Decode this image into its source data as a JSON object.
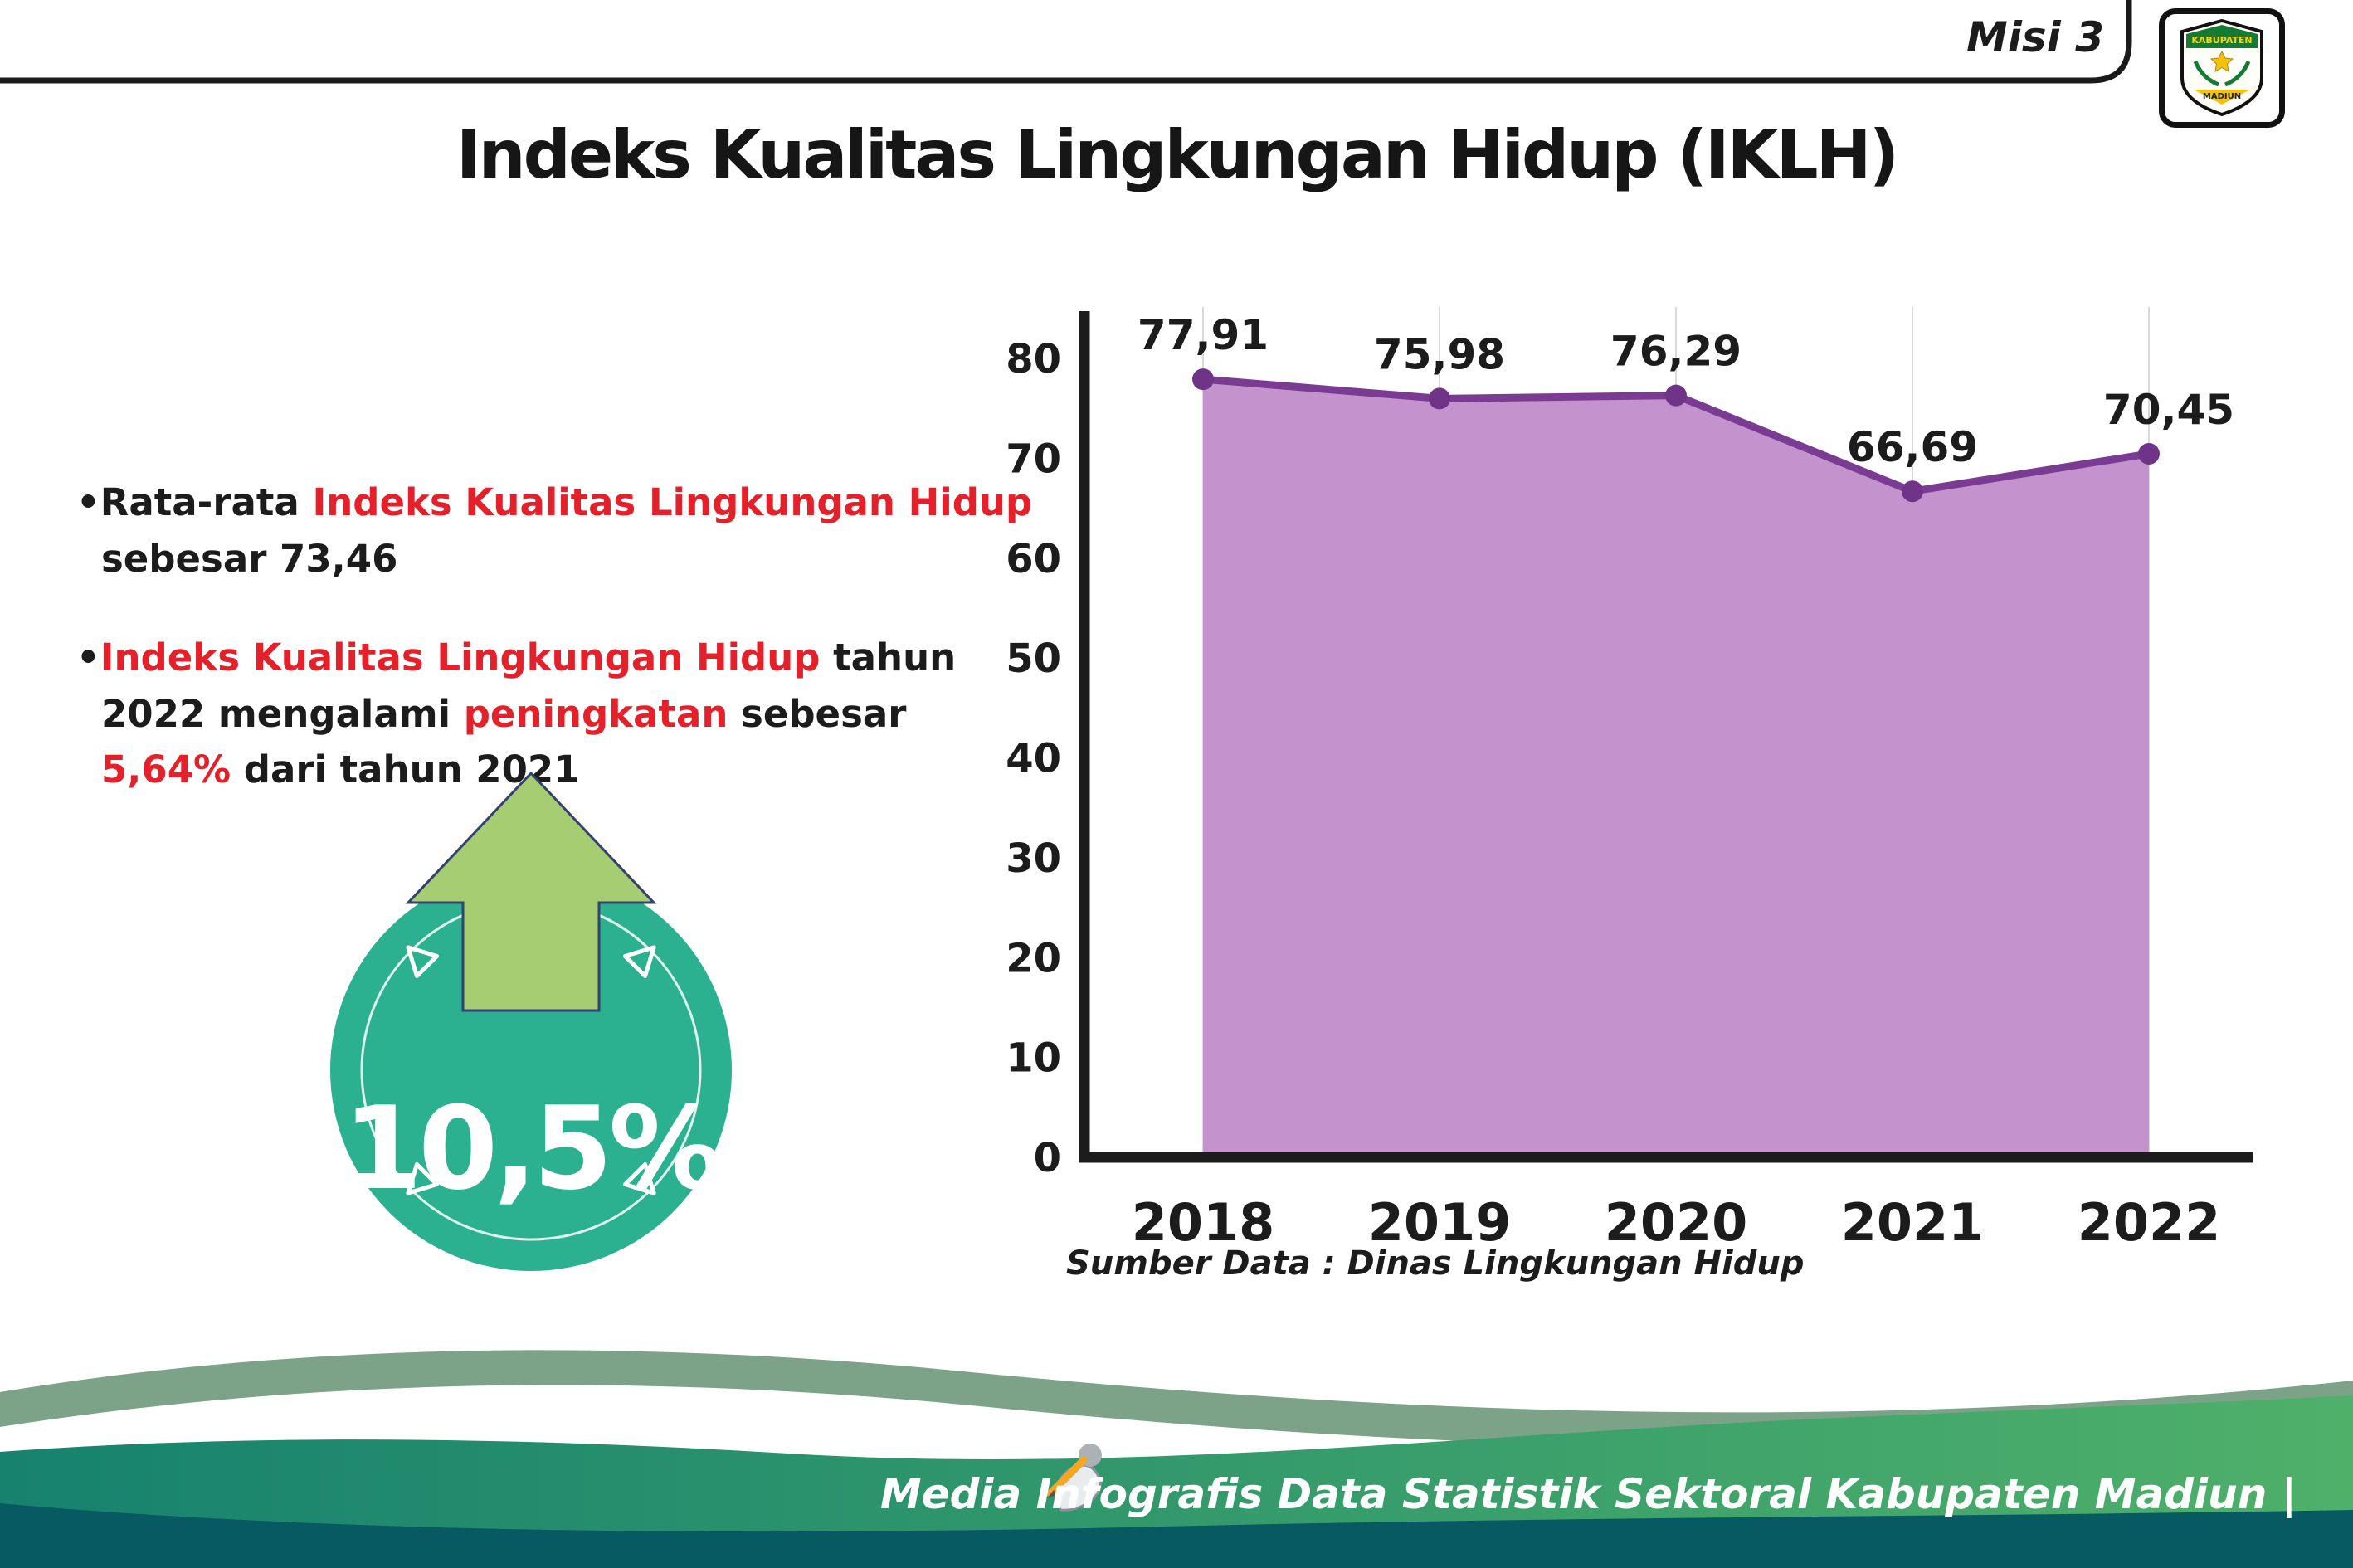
{
  "header": {
    "misi_label": "Misi 3",
    "title": "Indeks Kualitas Lingkungan Hidup (IKLH)",
    "logo_top": "KABUPATEN",
    "logo_bottom": "MADIUN"
  },
  "bullets": {
    "b1": {
      "bullet": "•",
      "seg_black1": "Rata-rata ",
      "seg_red": "Indeks Kualitas Lingkungan Hidup",
      "seg_black2": " sebesar 73,46"
    },
    "b2": {
      "bullet": "•",
      "seg_red1": "Indeks Kualitas Lingkungan Hidup",
      "seg_black1": " tahun 2022 mengalami ",
      "seg_red2": "peningkatan",
      "seg_black2": " sebesar ",
      "seg_red3": "5,64%",
      "seg_black3": " dari tahun 2021"
    }
  },
  "badge": {
    "value": "10,5%"
  },
  "chart_data": {
    "type": "area",
    "title": "",
    "xlabel": "",
    "ylabel": "",
    "categories": [
      "2018",
      "2019",
      "2020",
      "2021",
      "2022"
    ],
    "values": [
      77.91,
      75.98,
      76.29,
      66.69,
      70.45
    ],
    "value_labels": [
      "77,91",
      "75,98",
      "76,29",
      "66,69",
      "70,45"
    ],
    "ylim": [
      0,
      80
    ],
    "yticks": [
      0,
      10,
      20,
      30,
      40,
      50,
      60,
      70,
      80
    ],
    "grid": "vertical-only",
    "legend": "none",
    "source": "Sumber Data : Dinas Lingkungan Hidup",
    "colors": {
      "area": "#c493ce",
      "line": "#7a3b92",
      "dot": "#6f3487",
      "axis": "#1c1c1c",
      "gridline": "#d9d9d9"
    }
  },
  "footer": {
    "credit": "Media Infografis Data Statistik Sektoral Kabupaten Madiun |"
  },
  "colors": {
    "highlight_red": "#e4202a",
    "badge_teal": "#2bb18f",
    "arrow_green": "#a6cd72",
    "footer_dark_teal": "#085a62",
    "footer_green": "#3fa56b",
    "footer_sage": "#7ca287"
  }
}
